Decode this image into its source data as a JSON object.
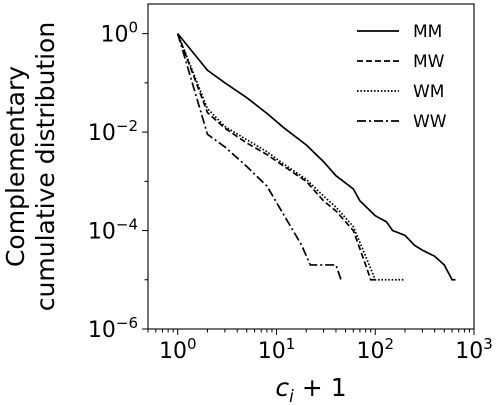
{
  "chart_data": {
    "type": "line",
    "xscale": "log",
    "yscale": "log",
    "xlim": [
      0.5,
      1000
    ],
    "ylim": [
      1e-06,
      4
    ],
    "xlabel": "c_i + 1",
    "ylabel_lines": [
      "Complementary",
      "cumulative distribution"
    ],
    "xticks": [
      {
        "value": 1,
        "base": "10",
        "exp": "0"
      },
      {
        "value": 10,
        "base": "10",
        "exp": "1"
      },
      {
        "value": 100,
        "base": "10",
        "exp": "2"
      },
      {
        "value": 1000,
        "base": "10",
        "exp": "3"
      }
    ],
    "yticks": [
      {
        "value": 1,
        "base": "10",
        "exp": "0"
      },
      {
        "value": 0.01,
        "base": "10",
        "exp": "−2"
      },
      {
        "value": 0.0001,
        "base": "10",
        "exp": "−4"
      },
      {
        "value": 1e-06,
        "base": "10",
        "exp": "−6"
      }
    ],
    "grid": false,
    "legend": {
      "placement": "top-right"
    },
    "series": [
      {
        "name": "MM",
        "dash": "solid",
        "x": [
          1,
          2,
          3,
          5,
          8,
          12,
          20,
          30,
          40,
          60,
          70,
          100,
          130,
          150,
          200,
          250,
          300,
          400,
          500,
          600,
          650
        ],
        "y": [
          1,
          0.18,
          0.1,
          0.05,
          0.024,
          0.012,
          0.0055,
          0.0025,
          0.0013,
          0.0007,
          0.0004,
          0.0002,
          0.00015,
          0.0001,
          8e-05,
          5e-05,
          4e-05,
          3e-05,
          2e-05,
          1e-05,
          1e-05
        ]
      },
      {
        "name": "MW",
        "dash": "dashed",
        "x": [
          1,
          2,
          3,
          5,
          8,
          12,
          20,
          30,
          40,
          60,
          80,
          90,
          100
        ],
        "y": [
          1,
          0.025,
          0.012,
          0.006,
          0.0035,
          0.002,
          0.001,
          0.0004,
          0.00025,
          0.0001,
          2e-05,
          1e-05,
          1e-05
        ]
      },
      {
        "name": "WM",
        "dash": "dotted",
        "x": [
          1,
          2,
          3,
          5,
          8,
          12,
          20,
          30,
          40,
          60,
          80,
          100,
          150,
          200
        ],
        "y": [
          1,
          0.03,
          0.013,
          0.007,
          0.004,
          0.0022,
          0.0011,
          0.0005,
          0.0003,
          0.00012,
          3e-05,
          1e-05,
          1e-05,
          1e-05
        ]
      },
      {
        "name": "WW",
        "dash": "dashdot",
        "x": [
          1,
          2,
          3,
          5,
          8,
          12,
          18,
          22,
          25,
          30,
          40,
          45
        ],
        "y": [
          1,
          0.009,
          0.005,
          0.002,
          0.0008,
          0.0002,
          5e-05,
          2e-05,
          2e-05,
          2e-05,
          2e-05,
          1e-05
        ]
      }
    ]
  }
}
